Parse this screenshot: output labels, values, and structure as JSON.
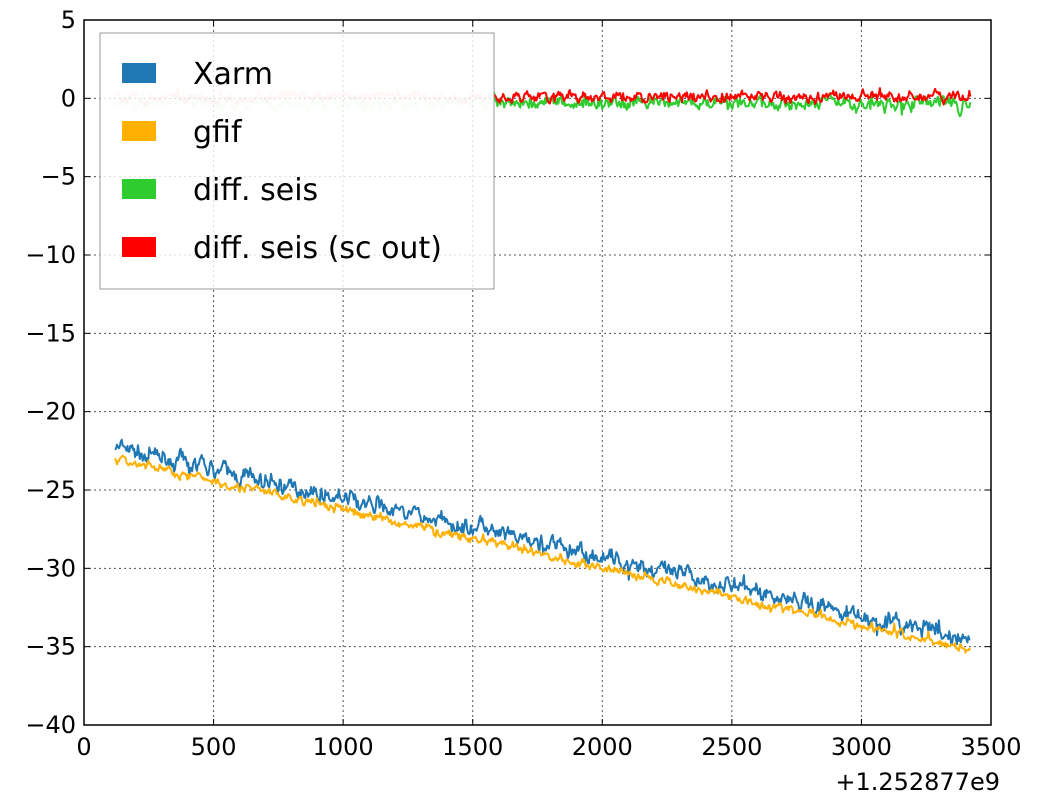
{
  "chart_data": {
    "type": "line",
    "title": "",
    "xlabel": "",
    "ylabel": "",
    "x_offset_label": "+1.252877e9",
    "xlim": [
      0,
      3500
    ],
    "ylim": [
      -40,
      5
    ],
    "xticks": [
      0,
      500,
      1000,
      1500,
      2000,
      2500,
      3000,
      3500
    ],
    "xtick_labels": [
      "0",
      "500",
      "1000",
      "1500",
      "2000",
      "2500",
      "3000",
      "3500"
    ],
    "yticks": [
      -40,
      -35,
      -30,
      -25,
      -20,
      -15,
      -10,
      -5,
      0,
      5
    ],
    "ytick_labels": [
      "−40",
      "−35",
      "−30",
      "−25",
      "−20",
      "−15",
      "−10",
      "−5",
      "0",
      "5"
    ],
    "grid": true,
    "legend_position": "top-left",
    "series": [
      {
        "name": "Xarm",
        "color": "#1f77b4",
        "x": [
          120,
          3420
        ],
        "y": [
          -22.3,
          -34.6
        ],
        "noise": 0.55,
        "faded_before": null
      },
      {
        "name": "gfif",
        "color": "#ffb000",
        "x": [
          120,
          3420
        ],
        "y": [
          -23.0,
          -35.2
        ],
        "noise": 0.3,
        "faded_before": null
      },
      {
        "name": "diff. seis",
        "color": "#2ecc2e",
        "x": [
          120,
          3420
        ],
        "y": [
          -0.3,
          -0.3
        ],
        "noise": 0.45,
        "faded_before": 1580
      },
      {
        "name": "diff. seis (sc out)",
        "color": "#ff0000",
        "x": [
          120,
          3420
        ],
        "y": [
          0.1,
          0.1
        ],
        "noise": 0.35,
        "faded_before": 1580
      }
    ]
  }
}
